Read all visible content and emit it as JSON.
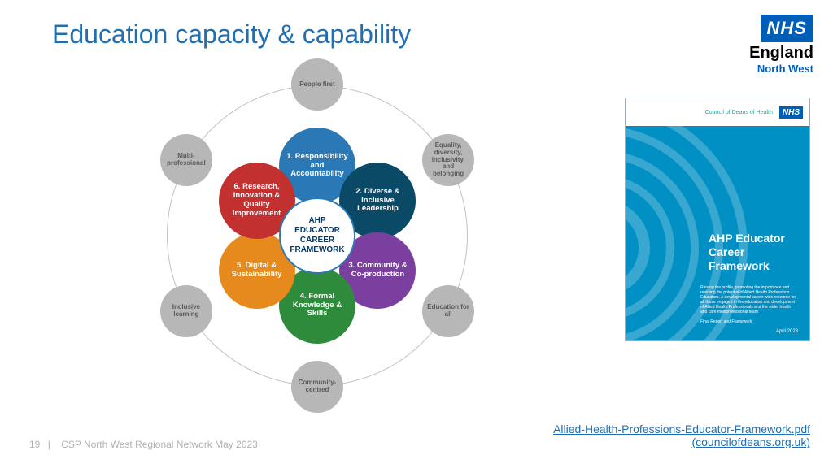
{
  "title": "Education capacity & capability",
  "logo": {
    "nhs": "NHS",
    "england": "England",
    "nw": "North West"
  },
  "center_label": "AHP EDUCATOR CAREER FRAMEWORK",
  "diagram": {
    "ring_radius": 185,
    "center_size": 94,
    "petal_size": 94,
    "petal_orbit": 86,
    "outer_size": 64,
    "outer_orbit": 186,
    "outer_color": "#b7b7b7",
    "outer_text_color": "#5a5a5a",
    "ring_border_color": "#c0c0c0",
    "center_border_color": "#2a79b6",
    "center_text_color": "#003a6b"
  },
  "petals": [
    {
      "label": "1. Responsibility and Accountability",
      "color": "#2a79b6",
      "angle": -90
    },
    {
      "label": "2. Diverse & Inclusive Leadership",
      "color": "#0a4a66",
      "angle": -30
    },
    {
      "label": "3. Community & Co-production",
      "color": "#7b3fa0",
      "angle": 30
    },
    {
      "label": "4. Formal Knowledge & Skills",
      "color": "#2e8b3c",
      "angle": 90
    },
    {
      "label": "5. Digital & Sustainability",
      "color": "#e68a1e",
      "angle": 150
    },
    {
      "label": "6. Research, Innovation & Quality Improvement",
      "color": "#c23030",
      "angle": -150
    }
  ],
  "outer_nodes": [
    {
      "label": "People first",
      "angle": -90
    },
    {
      "label": "Equality, diversity, inclusivity, and belonging",
      "angle": -30
    },
    {
      "label": "Education for all",
      "angle": 30
    },
    {
      "label": "Community-centred",
      "angle": 90
    },
    {
      "label": "Inclusive learning",
      "angle": 150
    },
    {
      "label": "Multi-professional",
      "angle": -150
    }
  ],
  "cover": {
    "council": "Council of Deans of Health",
    "nhs": "NHS",
    "title": "AHP Educator Career Framework",
    "subtitle": "Raising the profile, promoting the importance and realising the potential of Allied Health Professions Educators. A developmental career wide resource for all those engaged in the education and development of Allied Health Professionals and the wider health and care multiprofessional team",
    "report_line": "Final Report and Framework",
    "date": "April 2023",
    "bg_color": "#0090c4"
  },
  "link": {
    "line1": "Allied-Health-Professions-Educator-Framework.pdf",
    "line2": "(councilofdeans.org.uk)"
  },
  "footer": {
    "page": "19",
    "sep": "|",
    "text": "CSP North West Regional Network May 2023"
  }
}
